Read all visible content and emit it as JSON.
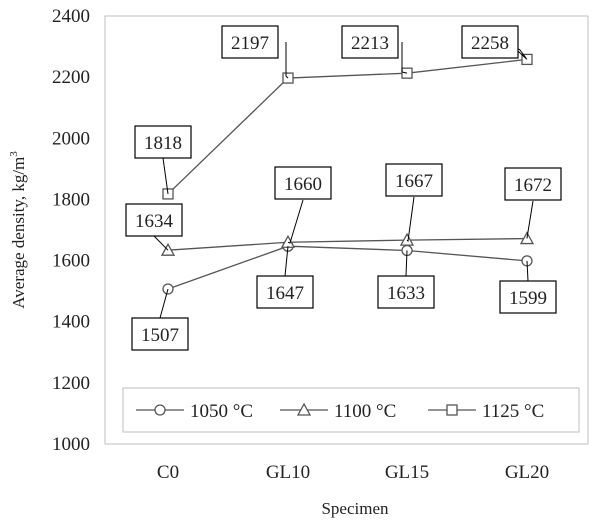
{
  "chart_data": {
    "type": "line",
    "title": "",
    "xlabel": "Specimen",
    "ylabel": "Average density, kg/m",
    "ylabel_superscript": "3",
    "categories": [
      "C0",
      "GL10",
      "GL15",
      "GL20"
    ],
    "ylim": [
      1000,
      2400
    ],
    "yticks": [
      "1000",
      "1200",
      "1400",
      "1600",
      "1800",
      "2000",
      "2200",
      "2400"
    ],
    "grid": false,
    "legend": "bottom-inside",
    "series": [
      {
        "name": "1050 °C",
        "marker": "circle",
        "values": [
          1507,
          1647,
          1633,
          1599
        ],
        "labels": [
          "1507",
          "1647",
          "1633",
          "1599"
        ]
      },
      {
        "name": "1100 °C",
        "marker": "triangle",
        "values": [
          1634,
          1660,
          1667,
          1672
        ],
        "labels": [
          "1634",
          "1660",
          "1667",
          "1672"
        ]
      },
      {
        "name": "1125 °C",
        "marker": "square",
        "values": [
          1818,
          2197,
          2213,
          2258
        ],
        "labels": [
          "1818",
          "2197",
          "2213",
          "2258"
        ]
      }
    ],
    "colors": {
      "line": "#555555",
      "marker_fill": "#ffffff",
      "label_box": "#000000"
    }
  }
}
